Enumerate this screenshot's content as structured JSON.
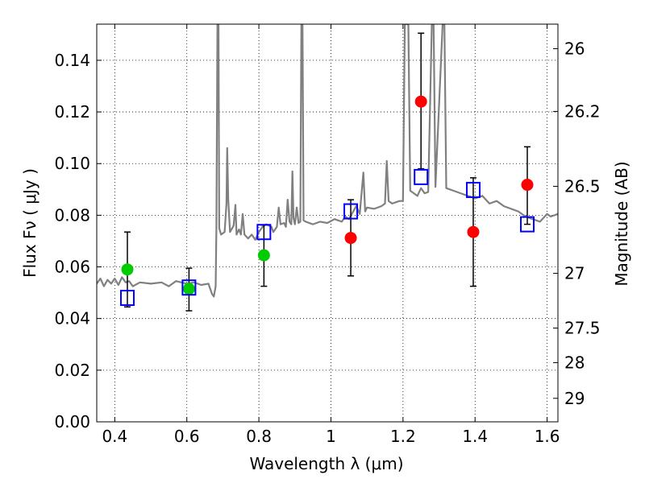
{
  "chart_data": {
    "type": "scatter",
    "xlabel": "Wavelength  λ (μm)",
    "ylabel": "Flux  Fν  ( μJy )",
    "ylabel_right": "Magnitude (AB)",
    "xlim": [
      0.35,
      1.63
    ],
    "ylim": [
      0.0,
      0.154
    ],
    "x_ticks": [
      0.4,
      0.6,
      0.8,
      1.0,
      1.2,
      1.4,
      1.6
    ],
    "x_tick_labels": [
      "0.4",
      "0.6",
      "0.8",
      "1",
      "1.2",
      "1.4",
      "1.6"
    ],
    "y_ticks": [
      0.0,
      0.02,
      0.04,
      0.06,
      0.08,
      0.1,
      0.12,
      0.14
    ],
    "y_tick_labels": [
      "0.00",
      "0.02",
      "0.04",
      "0.06",
      "0.08",
      "0.10",
      "0.12",
      "0.14"
    ],
    "right_ticks": [
      {
        "label": "26",
        "flux": 0.1445
      },
      {
        "label": "26.2",
        "flux": 0.1202
      },
      {
        "label": "26.5",
        "flux": 0.0912
      },
      {
        "label": "27",
        "flux": 0.0575
      },
      {
        "label": "27.5",
        "flux": 0.0363
      },
      {
        "label": "28",
        "flux": 0.0229
      },
      {
        "label": "29",
        "flux": 0.0091
      }
    ],
    "grid": true,
    "series": [
      {
        "marker": "circle",
        "color": "#00cc00",
        "points": [
          {
            "x": 0.435,
            "y": 0.059,
            "err": [
              0.0445,
              0.0735
            ]
          },
          {
            "x": 0.606,
            "y": 0.0515,
            "err": [
              0.043,
              0.0595
            ]
          },
          {
            "x": 0.814,
            "y": 0.0645,
            "err": [
              0.0525,
              0.0762
            ]
          }
        ]
      },
      {
        "marker": "circle",
        "color": "#ff0000",
        "points": [
          {
            "x": 1.055,
            "y": 0.0712,
            "err": [
              0.0565,
              0.086
            ]
          },
          {
            "x": 1.25,
            "y": 0.124,
            "err": [
              0.098,
              0.1505
            ]
          },
          {
            "x": 1.395,
            "y": 0.0735,
            "err": [
              0.0525,
              0.0945
            ]
          },
          {
            "x": 1.545,
            "y": 0.0918,
            "err": [
              0.0765,
              0.1065
            ]
          }
        ]
      },
      {
        "marker": "square-open",
        "color": "#0000ff",
        "points": [
          {
            "x": 0.435,
            "y": 0.048
          },
          {
            "x": 0.606,
            "y": 0.052
          },
          {
            "x": 0.814,
            "y": 0.0735
          },
          {
            "x": 1.055,
            "y": 0.0815
          },
          {
            "x": 1.25,
            "y": 0.0948
          },
          {
            "x": 1.395,
            "y": 0.0898
          },
          {
            "x": 1.545,
            "y": 0.0765
          }
        ]
      },
      {
        "type": "line",
        "color": "#808080",
        "points": [
          [
            0.35,
            0.0535
          ],
          [
            0.36,
            0.0555
          ],
          [
            0.37,
            0.0525
          ],
          [
            0.38,
            0.055
          ],
          [
            0.39,
            0.0535
          ],
          [
            0.4,
            0.0555
          ],
          [
            0.41,
            0.053
          ],
          [
            0.42,
            0.056
          ],
          [
            0.43,
            0.054
          ],
          [
            0.44,
            0.0545
          ],
          [
            0.45,
            0.0525
          ],
          [
            0.47,
            0.054
          ],
          [
            0.5,
            0.0535
          ],
          [
            0.53,
            0.054
          ],
          [
            0.55,
            0.0525
          ],
          [
            0.57,
            0.0545
          ],
          [
            0.6,
            0.0535
          ],
          [
            0.62,
            0.054
          ],
          [
            0.64,
            0.053
          ],
          [
            0.66,
            0.0535
          ],
          [
            0.67,
            0.0495
          ],
          [
            0.675,
            0.0485
          ],
          [
            0.68,
            0.0525
          ],
          [
            0.682,
            0.075
          ],
          [
            0.685,
            0.154
          ],
          [
            0.688,
            0.154
          ],
          [
            0.69,
            0.075
          ],
          [
            0.695,
            0.0725
          ],
          [
            0.705,
            0.0735
          ],
          [
            0.71,
            0.0845
          ],
          [
            0.712,
            0.106
          ],
          [
            0.715,
            0.086
          ],
          [
            0.72,
            0.0735
          ],
          [
            0.73,
            0.076
          ],
          [
            0.735,
            0.084
          ],
          [
            0.738,
            0.0725
          ],
          [
            0.745,
            0.0745
          ],
          [
            0.75,
            0.0725
          ],
          [
            0.755,
            0.0805
          ],
          [
            0.76,
            0.0725
          ],
          [
            0.77,
            0.071
          ],
          [
            0.78,
            0.0725
          ],
          [
            0.79,
            0.0705
          ],
          [
            0.8,
            0.0735
          ],
          [
            0.81,
            0.0755
          ],
          [
            0.82,
            0.0765
          ],
          [
            0.835,
            0.0755
          ],
          [
            0.84,
            0.0735
          ],
          [
            0.85,
            0.0755
          ],
          [
            0.855,
            0.083
          ],
          [
            0.86,
            0.0765
          ],
          [
            0.87,
            0.077
          ],
          [
            0.875,
            0.0755
          ],
          [
            0.88,
            0.086
          ],
          [
            0.885,
            0.0775
          ],
          [
            0.89,
            0.0765
          ],
          [
            0.893,
            0.097
          ],
          [
            0.896,
            0.079
          ],
          [
            0.9,
            0.0765
          ],
          [
            0.905,
            0.083
          ],
          [
            0.91,
            0.077
          ],
          [
            0.915,
            0.0775
          ],
          [
            0.918,
            0.154
          ],
          [
            0.921,
            0.154
          ],
          [
            0.924,
            0.078
          ],
          [
            0.93,
            0.0775
          ],
          [
            0.95,
            0.0765
          ],
          [
            0.97,
            0.0775
          ],
          [
            0.99,
            0.077
          ],
          [
            1.01,
            0.0785
          ],
          [
            1.03,
            0.0775
          ],
          [
            1.04,
            0.0795
          ],
          [
            1.05,
            0.0785
          ],
          [
            1.07,
            0.0835
          ],
          [
            1.08,
            0.0805
          ],
          [
            1.09,
            0.0965
          ],
          [
            1.095,
            0.0815
          ],
          [
            1.1,
            0.083
          ],
          [
            1.12,
            0.0825
          ],
          [
            1.14,
            0.0835
          ],
          [
            1.15,
            0.0845
          ],
          [
            1.155,
            0.101
          ],
          [
            1.16,
            0.0855
          ],
          [
            1.17,
            0.0845
          ],
          [
            1.19,
            0.0855
          ],
          [
            1.2,
            0.0855
          ],
          [
            1.205,
            0.154
          ],
          [
            1.215,
            0.154
          ],
          [
            1.22,
            0.0895
          ],
          [
            1.23,
            0.0885
          ],
          [
            1.24,
            0.0875
          ],
          [
            1.25,
            0.0905
          ],
          [
            1.26,
            0.0885
          ],
          [
            1.27,
            0.089
          ],
          [
            1.28,
            0.154
          ],
          [
            1.285,
            0.154
          ],
          [
            1.29,
            0.091
          ],
          [
            1.31,
            0.154
          ],
          [
            1.315,
            0.154
          ],
          [
            1.32,
            0.0905
          ],
          [
            1.34,
            0.0895
          ],
          [
            1.36,
            0.0885
          ],
          [
            1.38,
            0.0875
          ],
          [
            1.4,
            0.0865
          ],
          [
            1.42,
            0.0875
          ],
          [
            1.44,
            0.0845
          ],
          [
            1.46,
            0.0855
          ],
          [
            1.48,
            0.0835
          ],
          [
            1.5,
            0.0825
          ],
          [
            1.52,
            0.0815
          ],
          [
            1.54,
            0.0795
          ],
          [
            1.56,
            0.0785
          ],
          [
            1.58,
            0.0775
          ],
          [
            1.6,
            0.0805
          ],
          [
            1.61,
            0.0795
          ],
          [
            1.63,
            0.0805
          ]
        ]
      }
    ]
  }
}
